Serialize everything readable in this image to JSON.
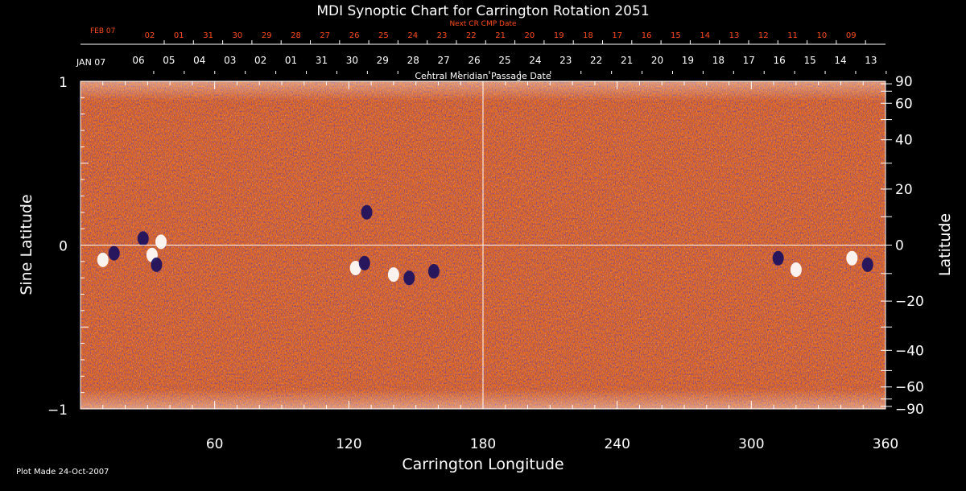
{
  "chart_data": {
    "type": "heatmap",
    "title": "MDI Synoptic Chart for Carrington Rotation 2051",
    "xlabel": "Carrington Longitude",
    "ylabel_left": "Sine Latitude",
    "ylabel_right": "Latitude",
    "xlim": [
      0,
      360
    ],
    "ylim": [
      -1,
      1
    ],
    "x_ticks_major": [
      60,
      120,
      180,
      240,
      300,
      360
    ],
    "y_ticks_left": [
      {
        "v": 1,
        "label": "1"
      },
      {
        "v": 0,
        "label": "0"
      },
      {
        "v": -1,
        "label": "−1"
      }
    ],
    "y_ticks_right": [
      {
        "lat": 90,
        "label": "90"
      },
      {
        "lat": 60,
        "label": "60"
      },
      {
        "lat": 40,
        "label": "40"
      },
      {
        "lat": 20,
        "label": "20"
      },
      {
        "lat": 0,
        "label": "0"
      },
      {
        "lat": -20,
        "label": "−20"
      },
      {
        "lat": -40,
        "label": "−40"
      },
      {
        "lat": -60,
        "label": "−60"
      },
      {
        "lat": -90,
        "label": "−90"
      }
    ],
    "top_axis_label": "Central Meridian Passage Date",
    "top_start_label": "JAN 07",
    "top_dates": [
      "06",
      "05",
      "04",
      "03",
      "02",
      "01",
      "31",
      "30",
      "29",
      "28",
      "27",
      "26",
      "25",
      "24",
      "23",
      "22",
      "21",
      "20",
      "19",
      "18",
      "17",
      "16",
      "15",
      "14",
      "13"
    ],
    "next_cr_label": "Next CR CMP Date",
    "next_cr_start_label": "FEB 07",
    "next_cr_dates": [
      "02",
      "01",
      "31",
      "30",
      "29",
      "28",
      "27",
      "26",
      "25",
      "24",
      "23",
      "22",
      "21",
      "20",
      "19",
      "18",
      "17",
      "16",
      "15",
      "14",
      "13",
      "12",
      "11",
      "10",
      "09"
    ],
    "colors": {
      "background": "#000000",
      "axes": "#ffffff",
      "next_cr": "#ff4a1c",
      "map_base": "#e8681c",
      "positive": "#ffffff",
      "negative": "#1a1060"
    },
    "active_regions": [
      {
        "lon": 10,
        "sinlat": -0.09,
        "polarity": "positive"
      },
      {
        "lon": 15,
        "sinlat": -0.05,
        "polarity": "negative"
      },
      {
        "lon": 28,
        "sinlat": 0.04,
        "polarity": "negative"
      },
      {
        "lon": 32,
        "sinlat": -0.06,
        "polarity": "positive"
      },
      {
        "lon": 36,
        "sinlat": 0.02,
        "polarity": "positive"
      },
      {
        "lon": 34,
        "sinlat": -0.12,
        "polarity": "negative"
      },
      {
        "lon": 123,
        "sinlat": -0.14,
        "polarity": "positive"
      },
      {
        "lon": 127,
        "sinlat": -0.11,
        "polarity": "negative"
      },
      {
        "lon": 140,
        "sinlat": -0.18,
        "polarity": "positive"
      },
      {
        "lon": 147,
        "sinlat": -0.2,
        "polarity": "negative"
      },
      {
        "lon": 158,
        "sinlat": -0.16,
        "polarity": "negative"
      },
      {
        "lon": 128,
        "sinlat": 0.2,
        "polarity": "negative"
      },
      {
        "lon": 312,
        "sinlat": -0.08,
        "polarity": "negative"
      },
      {
        "lon": 320,
        "sinlat": -0.15,
        "polarity": "positive"
      },
      {
        "lon": 345,
        "sinlat": -0.08,
        "polarity": "positive"
      },
      {
        "lon": 352,
        "sinlat": -0.12,
        "polarity": "negative"
      }
    ]
  },
  "footer": {
    "plot_made": "Plot Made 24-Oct-2007"
  }
}
